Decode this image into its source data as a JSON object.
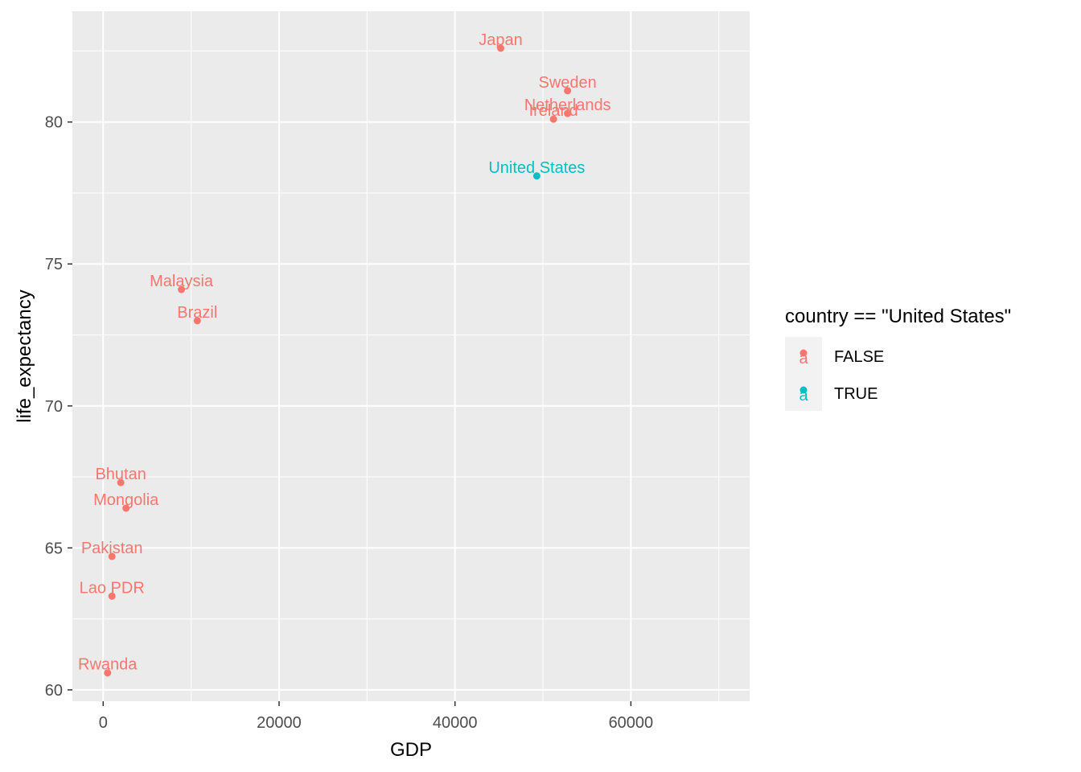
{
  "chart_data": {
    "type": "scatter",
    "title": "",
    "xlabel": "GDP",
    "ylabel": "life_expectancy",
    "xlim": [
      -3500,
      73500
    ],
    "ylim": [
      59.6,
      83.9
    ],
    "x_ticks": [
      0,
      20000,
      40000,
      60000
    ],
    "x_tick_labels": [
      "0",
      "20000",
      "40000",
      "60000"
    ],
    "y_ticks": [
      60,
      65,
      70,
      75,
      80
    ],
    "y_tick_labels": [
      "60",
      "65",
      "70",
      "75",
      "80"
    ],
    "grid": true,
    "legend": {
      "title": "country == \"United States\"",
      "placement": "right",
      "entries": [
        {
          "key": "FALSE",
          "label": "FALSE",
          "color": "#F8766D"
        },
        {
          "key": "TRUE",
          "label": "TRUE",
          "color": "#00BFC4"
        }
      ]
    },
    "points": [
      {
        "country": "Japan",
        "gdp": 45200,
        "life_expectancy": 82.6,
        "group": "FALSE"
      },
      {
        "country": "Sweden",
        "gdp": 52800,
        "life_expectancy": 81.1,
        "group": "FALSE"
      },
      {
        "country": "Netherlands",
        "gdp": 52800,
        "life_expectancy": 80.3,
        "group": "FALSE"
      },
      {
        "country": "Ireland",
        "gdp": 51200,
        "life_expectancy": 80.1,
        "group": "FALSE"
      },
      {
        "country": "United States",
        "gdp": 49300,
        "life_expectancy": 78.1,
        "group": "TRUE"
      },
      {
        "country": "Malaysia",
        "gdp": 8900,
        "life_expectancy": 74.1,
        "group": "FALSE"
      },
      {
        "country": "Brazil",
        "gdp": 10700,
        "life_expectancy": 73.0,
        "group": "FALSE"
      },
      {
        "country": "Bhutan",
        "gdp": 2000,
        "life_expectancy": 67.3,
        "group": "FALSE"
      },
      {
        "country": "Mongolia",
        "gdp": 2600,
        "life_expectancy": 66.4,
        "group": "FALSE"
      },
      {
        "country": "Pakistan",
        "gdp": 1000,
        "life_expectancy": 64.7,
        "group": "FALSE"
      },
      {
        "country": "Lao PDR",
        "gdp": 1000,
        "life_expectancy": 63.3,
        "group": "FALSE"
      },
      {
        "country": "Rwanda",
        "gdp": 500,
        "life_expectancy": 60.6,
        "group": "FALSE"
      }
    ]
  }
}
